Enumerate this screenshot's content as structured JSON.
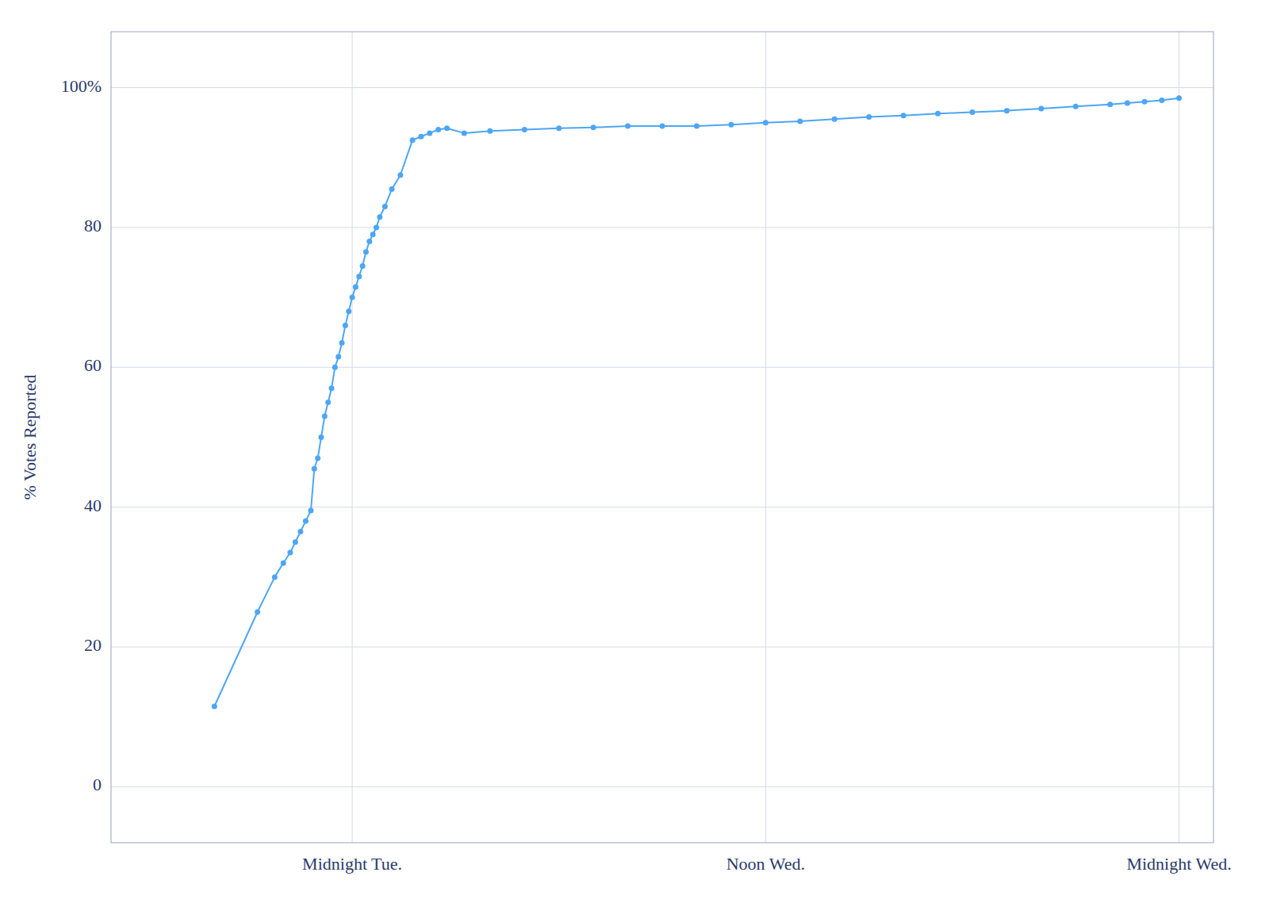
{
  "chart_data": {
    "type": "line",
    "ylabel": "% Votes Reported",
    "x": [
      4.0,
      6.5,
      7.5,
      8.0,
      8.4,
      8.7,
      9.0,
      9.3,
      9.6,
      9.8,
      10.0,
      10.2,
      10.4,
      10.6,
      10.8,
      11.0,
      11.2,
      11.4,
      11.6,
      11.8,
      12.0,
      12.2,
      12.4,
      12.6,
      12.8,
      13.0,
      13.2,
      13.4,
      13.6,
      13.9,
      14.3,
      14.8,
      15.5,
      16.0,
      16.5,
      17.0,
      17.5,
      18.5,
      20.0,
      22.0,
      24.0,
      26.0,
      28.0,
      30.0,
      32.0,
      34.0,
      36.0,
      38.0,
      40.0,
      42.0,
      44.0,
      46.0,
      48.0,
      50.0,
      52.0,
      54.0,
      56.0,
      57.0,
      58.0,
      59.0,
      60.0
    ],
    "values": [
      11.5,
      25.0,
      30.0,
      32.0,
      33.5,
      35.0,
      36.5,
      38.0,
      39.5,
      45.5,
      47.0,
      50.0,
      53.0,
      55.0,
      57.0,
      60.0,
      61.5,
      63.5,
      66.0,
      68.0,
      70.0,
      71.5,
      73.0,
      74.5,
      76.5,
      78.0,
      79.0,
      80.0,
      81.5,
      83.0,
      85.5,
      87.5,
      92.5,
      93.0,
      93.5,
      94.0,
      94.2,
      93.5,
      93.8,
      94.0,
      94.2,
      94.3,
      94.5,
      94.5,
      94.5,
      94.7,
      95.0,
      95.2,
      95.5,
      95.8,
      96.0,
      96.3,
      96.5,
      96.7,
      97.0,
      97.3,
      97.6,
      97.8,
      98.0,
      98.2,
      98.5
    ],
    "color": "#4da6f5",
    "marker": "circle",
    "xlim": [
      -2,
      62
    ],
    "xticks": [
      {
        "value": 12,
        "label": "Midnight Tue."
      },
      {
        "value": 36,
        "label": "Noon Wed."
      },
      {
        "value": 60,
        "label": "Midnight Wed."
      }
    ],
    "ylim": [
      -8,
      108
    ],
    "yticks": [
      0,
      20,
      40,
      60,
      80,
      {
        "value": 100,
        "label": "100%"
      }
    ],
    "grid": true
  }
}
